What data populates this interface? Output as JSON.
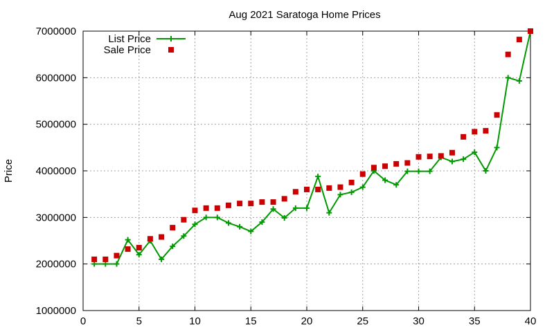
{
  "chart_data": {
    "type": "line",
    "title": "Aug 2021 Saratoga Home Prices",
    "xlabel": "",
    "ylabel": "Price",
    "xlim": [
      0,
      40
    ],
    "ylim": [
      1000000,
      7000000
    ],
    "xticks": [
      0,
      5,
      10,
      15,
      20,
      25,
      30,
      35,
      40
    ],
    "yticks": [
      1000000,
      2000000,
      3000000,
      4000000,
      5000000,
      6000000,
      7000000
    ],
    "grid": true,
    "legend_position": "top-left",
    "x": [
      1,
      2,
      3,
      4,
      5,
      6,
      7,
      8,
      9,
      10,
      11,
      12,
      13,
      14,
      15,
      16,
      17,
      18,
      19,
      20,
      21,
      22,
      23,
      24,
      25,
      26,
      27,
      28,
      29,
      30,
      31,
      32,
      33,
      34,
      35,
      36,
      37,
      38,
      39,
      40
    ],
    "series": [
      {
        "name": "List Price",
        "style": "line-cross",
        "color": "#009900",
        "values": [
          2000000,
          2000000,
          2000000,
          2520000,
          2200000,
          2500000,
          2100000,
          2380000,
          2600000,
          2850000,
          3000000,
          3000000,
          2880000,
          2800000,
          2700000,
          2900000,
          3180000,
          2990000,
          3200000,
          3200000,
          3880000,
          3100000,
          3490000,
          3540000,
          3650000,
          4000000,
          3800000,
          3700000,
          3990000,
          3990000,
          3990000,
          4290000,
          4200000,
          4250000,
          4400000,
          4000000,
          4500000,
          6000000,
          5930000,
          7000000
        ]
      },
      {
        "name": "Sale Price",
        "style": "square",
        "color": "#cc0000",
        "values": [
          2100000,
          2100000,
          2180000,
          2320000,
          2350000,
          2540000,
          2580000,
          2780000,
          2950000,
          3150000,
          3200000,
          3200000,
          3260000,
          3300000,
          3300000,
          3330000,
          3330000,
          3400000,
          3550000,
          3600000,
          3600000,
          3630000,
          3650000,
          3750000,
          3930000,
          4070000,
          4100000,
          4150000,
          4170000,
          4300000,
          4310000,
          4320000,
          4390000,
          4730000,
          4840000,
          4860000,
          5200000,
          6500000,
          6820000,
          7000000
        ]
      }
    ]
  },
  "colors": {
    "grid": "#a0a0a0",
    "axis": "#000000",
    "background": "#ffffff"
  }
}
